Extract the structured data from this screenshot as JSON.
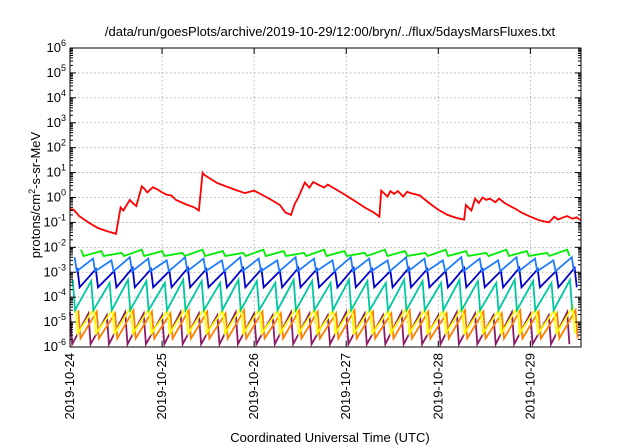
{
  "chart_data": {
    "type": "line",
    "title": "/data/run/goesPlots/archive/2019-10-29/12:00/bryn/../flux/5daysMarsFluxes.txt",
    "xlabel": "Coordinated Universal Time (UTC)",
    "ylabel": "protons/cm²-s-sr-MeV",
    "y_scale": "log",
    "ylim": [
      1e-06,
      1000000.0
    ],
    "xlim": [
      0,
      5.55
    ],
    "x_ticks": [
      {
        "value": 0,
        "label": "2019-10-24"
      },
      {
        "value": 1,
        "label": "2019-10-25"
      },
      {
        "value": 2,
        "label": "2019-10-26"
      },
      {
        "value": 3,
        "label": "2019-10-27"
      },
      {
        "value": 4,
        "label": "2019-10-28"
      },
      {
        "value": 5,
        "label": "2019-10-29"
      }
    ],
    "y_ticks": [
      {
        "exp": "-6"
      },
      {
        "exp": "-5"
      },
      {
        "exp": "-4"
      },
      {
        "exp": "-3"
      },
      {
        "exp": "-2"
      },
      {
        "exp": "-1"
      },
      {
        "exp": "0"
      },
      {
        "exp": "1"
      },
      {
        "exp": "2"
      },
      {
        "exp": "3"
      },
      {
        "exp": "4"
      },
      {
        "exp": "5"
      },
      {
        "exp": "6"
      }
    ],
    "y_tick_base": "10",
    "grid": true,
    "series": [
      {
        "color": "#ff0000",
        "kind": "points",
        "x": [
          0.0,
          0.04,
          0.1,
          0.2,
          0.3,
          0.4,
          0.5,
          0.55,
          0.58,
          0.65,
          0.68,
          0.72,
          0.78,
          0.8,
          0.84,
          0.9,
          0.96,
          1.0,
          1.05,
          1.1,
          1.15,
          1.25,
          1.35,
          1.4,
          1.44,
          1.46,
          1.6,
          1.8,
          1.9,
          2.0,
          2.1,
          2.2,
          2.28,
          2.34,
          2.4,
          2.44,
          2.48,
          2.55,
          2.6,
          2.64,
          2.68,
          2.76,
          2.8,
          2.9,
          3.0,
          3.1,
          3.2,
          3.3,
          3.36,
          3.38,
          3.45,
          3.48,
          3.52,
          3.56,
          3.62,
          3.66,
          3.7,
          3.8,
          3.9,
          4.0,
          4.1,
          4.2,
          4.28,
          4.3,
          4.36,
          4.4,
          4.44,
          4.48,
          4.52,
          4.56,
          4.62,
          4.66,
          4.72,
          4.78,
          4.84,
          4.9,
          5.0,
          5.1,
          5.2,
          5.26,
          5.3,
          5.36,
          5.4,
          5.46,
          5.5,
          5.55
        ],
        "y": [
          0.35,
          0.32,
          0.18,
          0.1,
          0.06,
          0.045,
          0.035,
          0.4,
          0.3,
          0.8,
          0.6,
          0.45,
          2.8,
          2.4,
          1.6,
          2.6,
          2.0,
          1.6,
          1.3,
          1.2,
          0.8,
          0.55,
          0.4,
          0.3,
          10,
          8,
          3.8,
          2.0,
          1.5,
          1.9,
          1.2,
          0.75,
          0.5,
          0.25,
          0.2,
          0.55,
          1.0,
          4.0,
          2.5,
          4.2,
          3.5,
          2.5,
          3.3,
          2.0,
          1.2,
          0.7,
          0.4,
          0.25,
          0.17,
          1.9,
          1.1,
          1.8,
          1.4,
          1.8,
          1.1,
          1.7,
          1.5,
          1.2,
          0.6,
          0.32,
          0.2,
          0.15,
          0.13,
          0.5,
          0.3,
          0.9,
          0.6,
          1.0,
          0.8,
          0.9,
          0.65,
          0.9,
          0.6,
          0.45,
          0.35,
          0.25,
          0.17,
          0.12,
          0.1,
          0.17,
          0.13,
          0.16,
          0.18,
          0.14,
          0.16,
          0.12
        ]
      },
      {
        "color": "#00ee00",
        "kind": "sawtooth",
        "x_start": 0.12,
        "x_end": 5.55,
        "x_step": 0.22,
        "top": 0.008,
        "bottom": 0.0045
      },
      {
        "color": "#1e7cff",
        "kind": "sawtooth",
        "x_start": 0.05,
        "x_end": 5.55,
        "x_step": 0.2,
        "top": 0.004,
        "bottom": 0.0011
      },
      {
        "color": "#0000cc",
        "kind": "sawtooth",
        "x_start": 0.08,
        "x_end": 5.55,
        "x_step": 0.2,
        "top": 0.0015,
        "bottom": 0.00025
      },
      {
        "color": "#00c8a0",
        "kind": "sawtooth",
        "x_start": 0.03,
        "x_end": 5.55,
        "x_step": 0.2,
        "top": 0.0005,
        "bottom": 3e-05
      },
      {
        "color": "#ffff00",
        "kind": "sawtooth",
        "x_start": 0.06,
        "x_end": 5.55,
        "x_step": 0.2,
        "top": 4e-05,
        "bottom": 3.5e-06
      },
      {
        "color": "#ff8000",
        "kind": "sawtooth",
        "x_start": 0.09,
        "x_end": 5.55,
        "x_step": 0.2,
        "top": 3e-05,
        "bottom": 2.2e-06
      },
      {
        "color": "#8b1a6b",
        "kind": "sawtooth",
        "x_start": 0.0,
        "x_end": 5.55,
        "x_step": 0.2,
        "top": 2.5e-05,
        "bottom": 1.3e-06
      }
    ]
  }
}
